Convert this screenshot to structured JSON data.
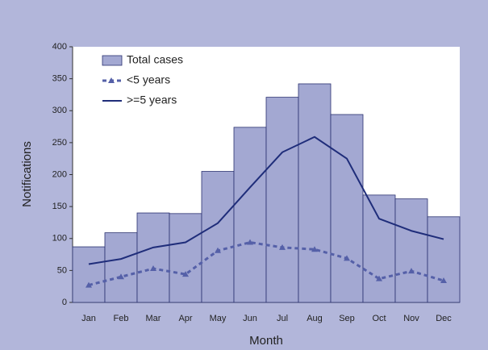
{
  "chart_data": {
    "type": "bar-line",
    "xlabel": "Month",
    "ylabel": "Notifications",
    "categories": [
      "Jan",
      "Feb",
      "Mar",
      "Apr",
      "May",
      "Jun",
      "Jul",
      "Aug",
      "Sep",
      "Oct",
      "Nov",
      "Dec"
    ],
    "series": [
      {
        "name": "Total cases",
        "kind": "bar",
        "color": "#a3a8d2",
        "values": [
          87,
          109,
          140,
          139,
          205,
          274,
          321,
          342,
          294,
          168,
          162,
          134
        ]
      },
      {
        "name": "<5 years",
        "kind": "dashed-line",
        "color": "#5560a8",
        "values": [
          27,
          40,
          53,
          44,
          81,
          94,
          86,
          83,
          69,
          37,
          49,
          34
        ]
      },
      {
        "name": ">=5 years",
        "kind": "line",
        "color": "#1f2d7a",
        "values": [
          60,
          68,
          86,
          94,
          124,
          180,
          235,
          259,
          225,
          131,
          112,
          99
        ]
      }
    ],
    "ylim": [
      0,
      400
    ],
    "yticks": [
      0,
      50,
      100,
      150,
      200,
      250,
      300,
      350,
      400
    ]
  }
}
